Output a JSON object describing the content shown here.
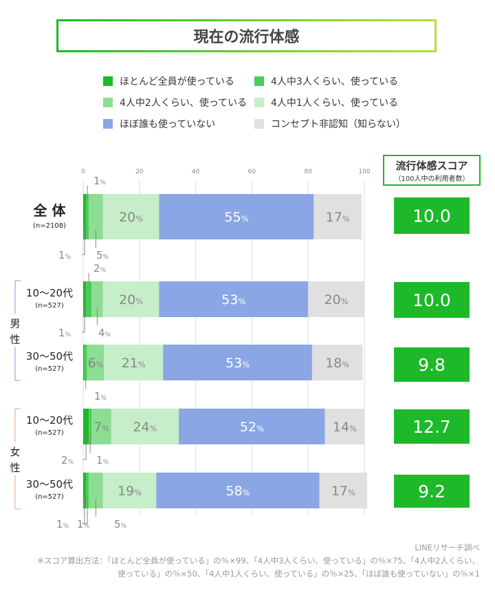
{
  "title": "現在の流行体感",
  "legend": [
    {
      "label": "ほとんど全員が使っている",
      "color": "#1db92a"
    },
    {
      "label": "4人中3人くらい、使っている",
      "color": "#4ccb5a"
    },
    {
      "label": "4人中2人くらい、使っている",
      "color": "#8ddd92"
    },
    {
      "label": "4人中1人くらい、使っている",
      "color": "#c6eec8"
    },
    {
      "label": "ほぼ誰も使っていない",
      "color": "#8aa6e4"
    },
    {
      "label": "コンセプト非認知（知らない）",
      "color": "#e0e0e0"
    }
  ],
  "score_header": {
    "title": "流行体感スコア",
    "subtitle": "（100人中の利用者数）",
    "color": "#1db92a"
  },
  "groups": [
    {
      "label": "男性",
      "bracket_color": "#7d9be0"
    },
    {
      "label": "女性",
      "bracket_color": "#f4a07c"
    }
  ],
  "chart_data": {
    "type": "bar",
    "orientation": "horizontal-stacked",
    "xlim": [
      0,
      100
    ],
    "x_ticks": [
      "0",
      "20",
      "40",
      "60",
      "80",
      "100"
    ],
    "grid": true,
    "unit": "%",
    "series_names": [
      "ほとんど全員が使っている",
      "4人中3人くらい、使っている",
      "4人中2人くらい、使っている",
      "4人中1人くらい、使っている",
      "ほぼ誰も使っていない",
      "コンセプト非認知（知らない）"
    ],
    "rows": [
      {
        "label": "全 体",
        "n": "(n=2108)",
        "values": [
          1,
          1,
          5,
          20,
          55,
          17
        ],
        "labels": [
          "1",
          "1",
          "5",
          "20",
          "55",
          "17"
        ],
        "score": "10.0"
      },
      {
        "label": "10〜20代",
        "n": "(n=527)",
        "group": "男性",
        "values": [
          1,
          2,
          4,
          20,
          53,
          20
        ],
        "labels": [
          "1",
          "2",
          "4",
          "20",
          "53",
          "20"
        ],
        "score": "10.0"
      },
      {
        "label": "30〜50代",
        "n": "(n=527)",
        "group": "男性",
        "values": [
          0.4,
          1,
          6,
          21,
          53,
          18
        ],
        "labels": [
          "",
          "1",
          "6",
          "21",
          "53",
          "18"
        ],
        "score": "9.8"
      },
      {
        "label": "10〜20代",
        "n": "(n=527)",
        "group": "女性",
        "values": [
          2,
          1,
          7,
          24,
          52,
          14
        ],
        "labels": [
          "2",
          "1",
          "7",
          "24",
          "52",
          "14"
        ],
        "score": "12.7"
      },
      {
        "label": "30〜50代",
        "n": "(n=527)",
        "group": "女性",
        "values": [
          1,
          1,
          5,
          19,
          58,
          17
        ],
        "labels": [
          "1",
          "1",
          "5",
          "19",
          "58",
          "17"
        ],
        "score": "9.2"
      }
    ]
  },
  "footer": {
    "source": "LINEリサーチ調べ",
    "note_1": "※スコア算出方法：「ほとんど全員が使っている」の％×99、「4人中3人くらい、使っている」の％×75、「4人中2人くらい、",
    "note_2": "使っている」の％×50、「4人中1人くらい、使っている」の％×25、「ほぼ誰も使っていない」の％×1"
  }
}
